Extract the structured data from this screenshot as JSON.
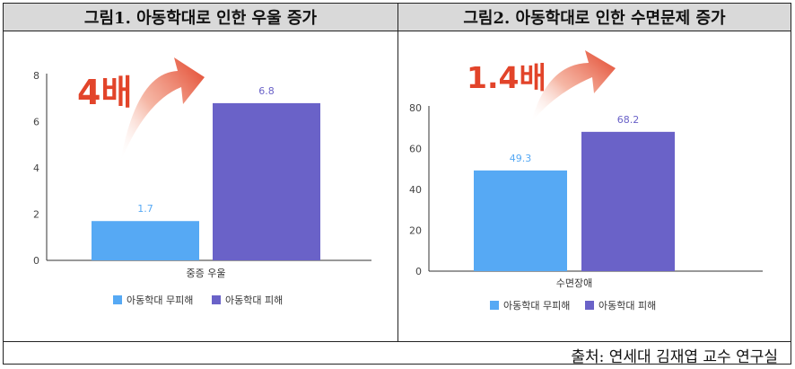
{
  "headers": [
    "그림1. 아동학대로 인한 우울 증가",
    "그림2. 아동학대로 인한 수면문제 증가"
  ],
  "source": "출처: 연세대 김재엽 교수 연구실",
  "colors": {
    "series1": "#56a9f4",
    "series2": "#6a62c8",
    "arrow": "#e2442a"
  },
  "chart_data": [
    {
      "type": "bar",
      "categories": [
        "중증 우울"
      ],
      "series": [
        {
          "name": "아동학대 무피해",
          "values": [
            1.7
          ]
        },
        {
          "name": "아동학대 피해",
          "values": [
            6.8
          ]
        }
      ],
      "ylim": [
        0,
        8
      ],
      "yticks": [
        0,
        2,
        4,
        6,
        8
      ],
      "annotation": "4배",
      "legend": "bottom"
    },
    {
      "type": "bar",
      "categories": [
        "수면장애"
      ],
      "series": [
        {
          "name": "아동학대 무피해",
          "values": [
            49.3
          ]
        },
        {
          "name": "아동학대 피해",
          "values": [
            68.2
          ]
        }
      ],
      "ylim": [
        0,
        80
      ],
      "yticks": [
        0,
        20,
        40,
        60,
        80
      ],
      "annotation": "1.4배",
      "legend": "bottom"
    }
  ]
}
